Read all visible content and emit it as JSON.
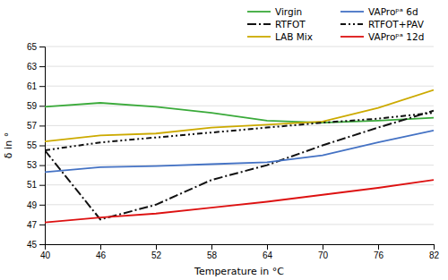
{
  "chart_data": {
    "type": "line",
    "xlabel": "Temperature in °C",
    "ylabel": "δ in °",
    "x": [
      40,
      46,
      52,
      58,
      64,
      70,
      76,
      82
    ],
    "xlim": [
      40,
      82
    ],
    "xticks": [
      40,
      46,
      52,
      58,
      64,
      70,
      76,
      82
    ],
    "ylim": [
      45,
      65
    ],
    "yticks": [
      45,
      47,
      49,
      51,
      53,
      55,
      57,
      59,
      61,
      63,
      65
    ],
    "grid": "y",
    "legend": "upper right",
    "series": [
      {
        "name": "Virgin",
        "color": "#3aaa3a",
        "line_style": "solid",
        "values": [
          58.9,
          59.3,
          58.9,
          58.3,
          57.5,
          57.3,
          57.5,
          57.8
        ]
      },
      {
        "name": "RTFOT",
        "color": "#111111",
        "line_style": "dashdot",
        "values": [
          54.5,
          47.5,
          49.0,
          51.5,
          53.0,
          55.0,
          56.8,
          58.5
        ]
      },
      {
        "name": "LAB Mix",
        "color": "#ccaa00",
        "line_style": "solid",
        "values": [
          55.4,
          56.0,
          56.2,
          56.8,
          57.1,
          57.4,
          58.8,
          60.6
        ]
      },
      {
        "name": "VAProᵖᵃ 6d",
        "color": "#4472c4",
        "line_style": "solid",
        "values": [
          52.3,
          52.8,
          52.9,
          53.1,
          53.3,
          54.0,
          55.3,
          56.5
        ]
      },
      {
        "name": "RTFOT+PAV",
        "color": "#111111",
        "line_style": "dashdotdot",
        "values": [
          54.5,
          55.3,
          55.8,
          56.3,
          56.8,
          57.3,
          57.7,
          58.3
        ]
      },
      {
        "name": "VAProᵖᵃ 12d",
        "color": "#dd1111",
        "line_style": "solid",
        "values": [
          47.2,
          47.7,
          48.1,
          48.7,
          49.3,
          50.0,
          50.7,
          51.5
        ]
      }
    ]
  }
}
